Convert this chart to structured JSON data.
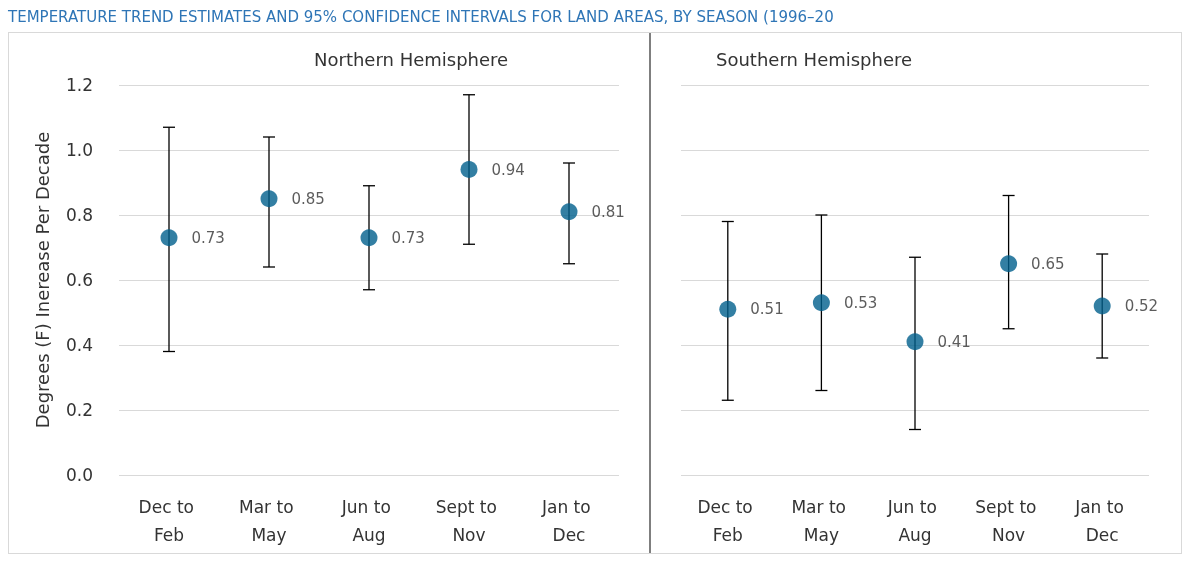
{
  "chart_data": [
    {
      "type": "scatter",
      "title": "Northern Hemisphere",
      "ylabel": "Degrees (F) Inerease Per Decade",
      "annotations": [
        "TEMPERATURE TREND ESTIMATES AND 95% CONFIDENCE INTERVALS FOR LAND AREAS, BY SEASON (1996–20"
      ],
      "categories": [
        "Dec to Feb",
        "Mar to May",
        "Jun to Aug",
        "Sept to Nov",
        "Jan to Dec"
      ],
      "series": [
        {
          "color": "#005f8c",
          "values": [
            0.73,
            0.85,
            0.73,
            0.94,
            0.81
          ],
          "errors": [
            [
              0.38,
              1.07
            ],
            [
              0.64,
              1.04
            ],
            [
              0.57,
              0.89
            ],
            [
              0.71,
              1.17
            ],
            [
              0.65,
              0.96
            ]
          ]
        }
      ],
      "ylim": [
        0,
        1.2
      ],
      "yticks": [
        {
          "value": 0,
          "label": "0.0"
        },
        0.2,
        0.4,
        0.6,
        0.8,
        {
          "value": 1,
          "label": "1.0"
        },
        1.2
      ],
      "grid": "y",
      "marker": "circle",
      "data_labels": true
    },
    {
      "type": "scatter",
      "title": "Southern Hemisphere",
      "categories": [
        "Dec to Feb",
        "Mar to May",
        "Jun to Aug",
        "Sept to Nov",
        "Jan to Dec"
      ],
      "series": [
        {
          "color": "#005f8c",
          "values": [
            0.51,
            0.53,
            0.41,
            0.65,
            0.52
          ],
          "errors": [
            [
              0.23,
              0.78
            ],
            [
              0.26,
              0.8
            ],
            [
              0.14,
              0.67
            ],
            [
              0.45,
              0.86
            ],
            [
              0.36,
              0.68
            ]
          ]
        }
      ],
      "ylim": [
        0,
        1.2
      ],
      "yticks": [
        0,
        0.2,
        0.4,
        0.6,
        0.8,
        1,
        1.2
      ],
      "tick_labels": "x",
      "grid": "y",
      "marker": "circle",
      "data_labels": true
    }
  ]
}
